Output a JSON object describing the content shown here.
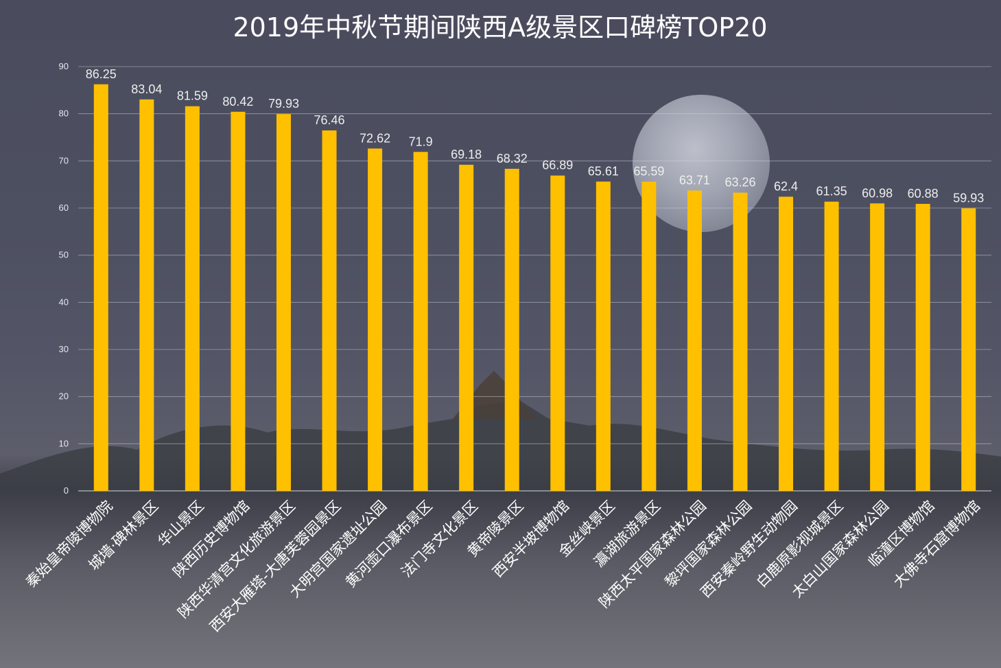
{
  "chart_data": {
    "type": "bar",
    "title": "2019年中秋节期间陕西A级景区口碑榜TOP20",
    "xlabel": "",
    "ylabel": "",
    "ylim": [
      0,
      90
    ],
    "yticks": [
      "0",
      "10",
      "20",
      "30",
      "40",
      "50",
      "60",
      "70",
      "80",
      "90"
    ],
    "grid": true,
    "bar_color": "#FFC000",
    "categories": [
      "秦始皇帝陵博物院",
      "城墙·碑林景区",
      "华山景区",
      "陕西历史博物馆",
      "陕西华清宫文化旅游景区",
      "西安大雁塔-大唐芙蓉园景区",
      "大明宫国家遗址公园",
      "黄河壶口瀑布景区",
      "法门寺文化景区",
      "黄帝陵景区",
      "西安半坡博物馆",
      "金丝峡景区",
      "瀛湖旅游景区",
      "陕西太平国家森林公园",
      "黎坪国家森林公园",
      "西安秦岭野生动物园",
      "白鹿原影视城景区",
      "太白山国家森林公园",
      "临潼区博物馆",
      "大佛寺石窟博物馆"
    ],
    "values": [
      86.25,
      83.04,
      81.59,
      80.42,
      79.93,
      76.46,
      72.62,
      71.9,
      69.18,
      68.32,
      66.89,
      65.61,
      65.59,
      63.71,
      63.26,
      62.4,
      61.35,
      60.98,
      60.88,
      59.93
    ],
    "value_labels": [
      "86.25",
      "83.04",
      "81.59",
      "80.42",
      "79.93",
      "76.46",
      "72.62",
      "71.9",
      "69.18",
      "68.32",
      "66.89",
      "65.61",
      "65.59",
      "63.71",
      "63.26",
      "62.4",
      "61.35",
      "60.98",
      "60.88",
      "59.93"
    ]
  }
}
